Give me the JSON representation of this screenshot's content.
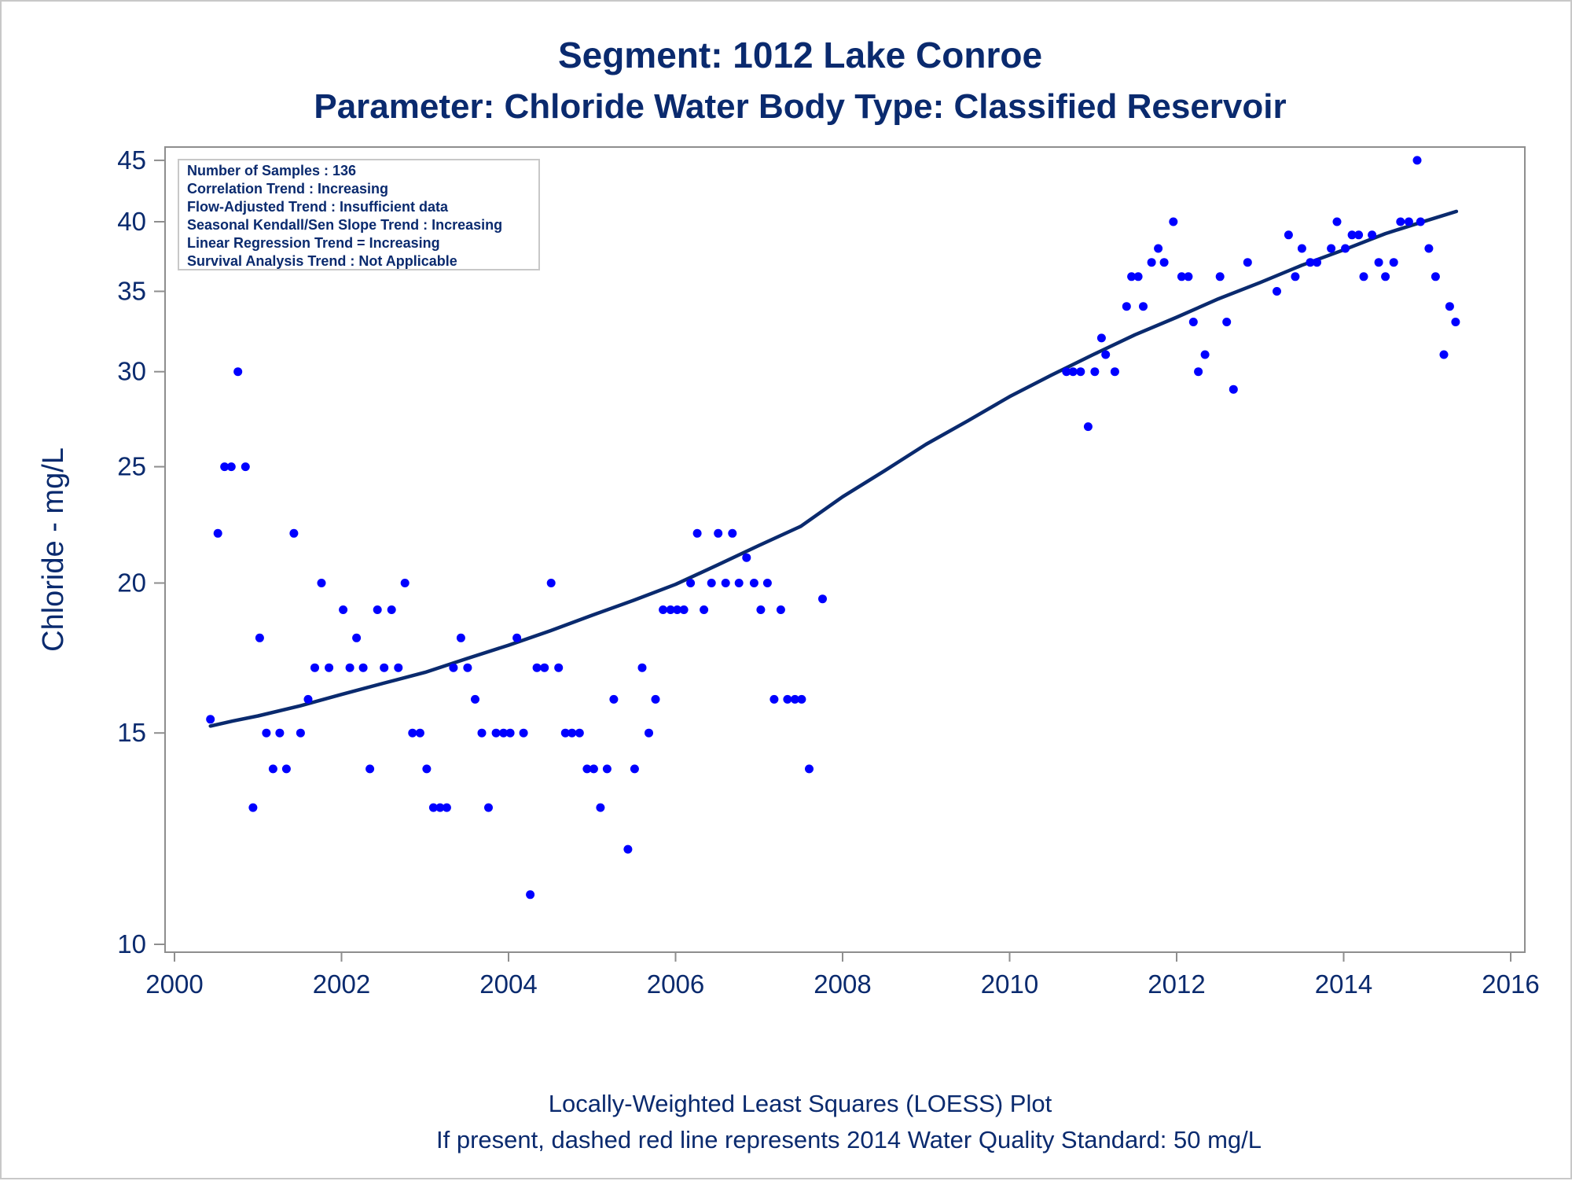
{
  "chart_data": {
    "type": "scatter",
    "title": "Segment: 1012  Lake Conroe",
    "subtitle": "Parameter: Chloride   Water Body Type: Classified Reservoir",
    "xlabel": "",
    "ylabel": "Chloride - mg/L",
    "y_scale": "log",
    "xlim": [
      2000,
      2016
    ],
    "ylim": [
      10,
      45
    ],
    "x_ticks": [
      2000,
      2002,
      2004,
      2006,
      2008,
      2010,
      2012,
      2014,
      2016
    ],
    "y_ticks": [
      10,
      15,
      20,
      25,
      30,
      35,
      40,
      45
    ],
    "grid": false,
    "info_box": [
      "Number of Samples : 136",
      "Correlation Trend : Increasing",
      "Flow-Adjusted Trend : Insufficient data",
      "Seasonal Kendall/Sen Slope Trend : Increasing",
      "Linear Regression Trend = Increasing",
      "Survival Analysis Trend : Not Applicable"
    ],
    "footnote_1": "Locally-Weighted Least Squares (LOESS) Plot",
    "footnote_2": "If present, dashed red line represents 2014 Water Quality Standard: 50     mg/L",
    "series": [
      {
        "type": "scatter",
        "color": "#0000ff",
        "points": [
          [
            2000.43,
            15.4
          ],
          [
            2000.52,
            22
          ],
          [
            2000.6,
            25
          ],
          [
            2000.68,
            25
          ],
          [
            2000.76,
            30
          ],
          [
            2000.85,
            25
          ],
          [
            2000.94,
            13
          ],
          [
            2001.02,
            18
          ],
          [
            2001.1,
            15
          ],
          [
            2001.18,
            14
          ],
          [
            2001.26,
            15
          ],
          [
            2001.34,
            14
          ],
          [
            2001.43,
            22
          ],
          [
            2001.51,
            15
          ],
          [
            2001.6,
            16
          ],
          [
            2001.68,
            17
          ],
          [
            2001.76,
            20
          ],
          [
            2001.85,
            17
          ],
          [
            2002.02,
            19
          ],
          [
            2002.1,
            17
          ],
          [
            2002.18,
            18
          ],
          [
            2002.26,
            17
          ],
          [
            2002.34,
            14
          ],
          [
            2002.43,
            19
          ],
          [
            2002.51,
            17
          ],
          [
            2002.6,
            19
          ],
          [
            2002.68,
            17
          ],
          [
            2002.76,
            20
          ],
          [
            2002.85,
            15
          ],
          [
            2002.94,
            15
          ],
          [
            2003.02,
            14
          ],
          [
            2003.1,
            13
          ],
          [
            2003.18,
            13
          ],
          [
            2003.26,
            13
          ],
          [
            2003.34,
            17
          ],
          [
            2003.43,
            18
          ],
          [
            2003.51,
            17
          ],
          [
            2003.6,
            16
          ],
          [
            2003.68,
            15
          ],
          [
            2003.76,
            13
          ],
          [
            2003.85,
            15
          ],
          [
            2003.94,
            15
          ],
          [
            2004.02,
            15
          ],
          [
            2004.1,
            18
          ],
          [
            2004.18,
            15
          ],
          [
            2004.26,
            11
          ],
          [
            2004.34,
            17
          ],
          [
            2004.43,
            17
          ],
          [
            2004.51,
            20
          ],
          [
            2004.6,
            17
          ],
          [
            2004.68,
            15
          ],
          [
            2004.76,
            15
          ],
          [
            2004.85,
            15
          ],
          [
            2004.94,
            14
          ],
          [
            2005.02,
            14
          ],
          [
            2005.1,
            13
          ],
          [
            2005.18,
            14
          ],
          [
            2005.26,
            16
          ],
          [
            2005.43,
            12
          ],
          [
            2005.51,
            14
          ],
          [
            2005.6,
            17
          ],
          [
            2005.68,
            15
          ],
          [
            2005.76,
            16
          ],
          [
            2005.85,
            19
          ],
          [
            2005.94,
            19
          ],
          [
            2006.02,
            19
          ],
          [
            2006.1,
            19
          ],
          [
            2006.18,
            20
          ],
          [
            2006.26,
            22
          ],
          [
            2006.34,
            19
          ],
          [
            2006.43,
            20
          ],
          [
            2006.51,
            22
          ],
          [
            2006.6,
            20
          ],
          [
            2006.68,
            22
          ],
          [
            2006.76,
            20
          ],
          [
            2006.85,
            21
          ],
          [
            2006.94,
            20
          ],
          [
            2007.02,
            19
          ],
          [
            2007.1,
            20
          ],
          [
            2007.18,
            16
          ],
          [
            2007.26,
            19
          ],
          [
            2007.34,
            16
          ],
          [
            2007.43,
            16
          ],
          [
            2007.51,
            16
          ],
          [
            2007.6,
            14
          ],
          [
            2007.76,
            19.4
          ],
          [
            2010.68,
            30
          ],
          [
            2010.76,
            30
          ],
          [
            2010.85,
            30
          ],
          [
            2010.94,
            27
          ],
          [
            2011.02,
            30
          ],
          [
            2011.1,
            32
          ],
          [
            2011.15,
            31
          ],
          [
            2011.26,
            30
          ],
          [
            2011.4,
            34
          ],
          [
            2011.46,
            36
          ],
          [
            2011.54,
            36
          ],
          [
            2011.6,
            34
          ],
          [
            2011.7,
            37
          ],
          [
            2011.78,
            38
          ],
          [
            2011.85,
            37
          ],
          [
            2011.96,
            40
          ],
          [
            2012.06,
            36
          ],
          [
            2012.14,
            36
          ],
          [
            2012.2,
            33
          ],
          [
            2012.26,
            30
          ],
          [
            2012.34,
            31
          ],
          [
            2012.52,
            36
          ],
          [
            2012.6,
            33
          ],
          [
            2012.68,
            29
          ],
          [
            2012.85,
            37
          ],
          [
            2013.2,
            35
          ],
          [
            2013.34,
            39
          ],
          [
            2013.42,
            36
          ],
          [
            2013.5,
            38
          ],
          [
            2013.6,
            37
          ],
          [
            2013.68,
            37
          ],
          [
            2013.85,
            38
          ],
          [
            2013.92,
            40
          ],
          [
            2014.02,
            38
          ],
          [
            2014.1,
            39
          ],
          [
            2014.18,
            39
          ],
          [
            2014.24,
            36
          ],
          [
            2014.34,
            39
          ],
          [
            2014.42,
            37
          ],
          [
            2014.5,
            36
          ],
          [
            2014.6,
            37
          ],
          [
            2014.68,
            40
          ],
          [
            2014.78,
            40
          ],
          [
            2014.88,
            45
          ],
          [
            2014.92,
            40
          ],
          [
            2015.02,
            38
          ],
          [
            2015.1,
            36
          ],
          [
            2015.2,
            31
          ],
          [
            2015.27,
            34
          ],
          [
            2015.34,
            33
          ]
        ]
      },
      {
        "type": "line",
        "color": "#0a2a6e",
        "points": [
          [
            2000.43,
            15.2
          ],
          [
            2000.7,
            15.35
          ],
          [
            2001.0,
            15.5
          ],
          [
            2001.5,
            15.8
          ],
          [
            2002.0,
            16.15
          ],
          [
            2002.5,
            16.5
          ],
          [
            2003.0,
            16.85
          ],
          [
            2003.5,
            17.3
          ],
          [
            2004.0,
            17.75
          ],
          [
            2004.5,
            18.25
          ],
          [
            2005.0,
            18.8
          ],
          [
            2005.5,
            19.35
          ],
          [
            2006.0,
            19.95
          ],
          [
            2006.5,
            20.7
          ],
          [
            2007.0,
            21.5
          ],
          [
            2007.5,
            22.3
          ],
          [
            2008.0,
            23.6
          ],
          [
            2008.5,
            24.8
          ],
          [
            2009.0,
            26.1
          ],
          [
            2009.5,
            27.3
          ],
          [
            2010.0,
            28.6
          ],
          [
            2010.5,
            29.8
          ],
          [
            2011.0,
            31.0
          ],
          [
            2011.5,
            32.2
          ],
          [
            2012.0,
            33.3
          ],
          [
            2012.5,
            34.5
          ],
          [
            2013.0,
            35.6
          ],
          [
            2013.5,
            36.8
          ],
          [
            2014.0,
            37.9
          ],
          [
            2014.5,
            39.1
          ],
          [
            2015.0,
            40.1
          ],
          [
            2015.35,
            40.8
          ]
        ]
      }
    ]
  }
}
